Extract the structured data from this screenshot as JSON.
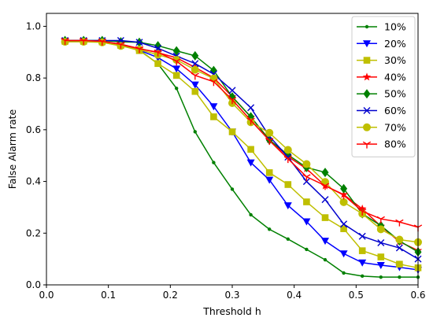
{
  "chart_data": {
    "type": "line",
    "title": "",
    "xlabel": "Threshold h",
    "ylabel": "False Alarm rate",
    "xlim": [
      0.0,
      0.6
    ],
    "ylim": [
      0.0,
      1.05
    ],
    "xticks": [
      0.0,
      0.1,
      0.2,
      0.3,
      0.4,
      0.5,
      0.6
    ],
    "xtick_labels": [
      "0.0",
      "0.1",
      "0.2",
      "0.3",
      "0.4",
      "0.5",
      "0.6"
    ],
    "yticks": [
      0.0,
      0.2,
      0.4,
      0.6,
      0.8,
      1.0
    ],
    "ytick_labels": [
      "0.0",
      "0.2",
      "0.4",
      "0.6",
      "0.8",
      "1.0"
    ],
    "grid": false,
    "legend_position": "top-right",
    "x": [
      0.03,
      0.06,
      0.09,
      0.12,
      0.15,
      0.18,
      0.21,
      0.24,
      0.27,
      0.3,
      0.33,
      0.36,
      0.39,
      0.42,
      0.45,
      0.48,
      0.51,
      0.54,
      0.57,
      0.6
    ],
    "series": [
      {
        "name": "10%",
        "color": "#008000",
        "marker": "dot",
        "values": [
          0.942,
          0.942,
          0.94,
          0.926,
          0.908,
          0.855,
          0.76,
          0.592,
          0.473,
          0.37,
          0.271,
          0.215,
          0.177,
          0.137,
          0.097,
          0.046,
          0.034,
          0.03,
          0.03,
          0.03
        ]
      },
      {
        "name": "20%",
        "color": "#0000ff",
        "marker": "triangle-down",
        "values": [
          0.942,
          0.942,
          0.94,
          0.928,
          0.908,
          0.879,
          0.836,
          0.774,
          0.69,
          0.592,
          0.473,
          0.406,
          0.307,
          0.245,
          0.17,
          0.121,
          0.086,
          0.076,
          0.068,
          0.058
        ]
      },
      {
        "name": "30%",
        "color": "#bfbf00",
        "marker": "square",
        "values": [
          0.942,
          0.942,
          0.94,
          0.926,
          0.906,
          0.856,
          0.81,
          0.748,
          0.65,
          0.592,
          0.524,
          0.434,
          0.388,
          0.321,
          0.26,
          0.217,
          0.132,
          0.108,
          0.08,
          0.066
        ]
      },
      {
        "name": "40%",
        "color": "#ff0000",
        "marker": "star",
        "values": [
          0.945,
          0.945,
          0.942,
          0.931,
          0.914,
          0.898,
          0.878,
          0.841,
          0.801,
          0.728,
          0.649,
          0.562,
          0.496,
          0.449,
          0.383,
          0.349,
          0.294,
          0.227,
          0.167,
          0.133
        ]
      },
      {
        "name": "50%",
        "color": "#008000",
        "marker": "diamond",
        "values": [
          0.945,
          0.945,
          0.945,
          0.94,
          0.938,
          0.925,
          0.905,
          0.886,
          0.829,
          0.727,
          0.65,
          0.56,
          0.503,
          0.454,
          0.435,
          0.372,
          0.275,
          0.229,
          0.17,
          0.127
        ]
      },
      {
        "name": "60%",
        "color": "#0000cd",
        "marker": "x",
        "values": [
          0.945,
          0.945,
          0.945,
          0.945,
          0.938,
          0.915,
          0.885,
          0.856,
          0.815,
          0.752,
          0.685,
          0.575,
          0.494,
          0.4,
          0.33,
          0.235,
          0.188,
          0.163,
          0.143,
          0.1
        ]
      },
      {
        "name": "70%",
        "color": "#bfbf00",
        "marker": "circle",
        "values": [
          0.94,
          0.94,
          0.938,
          0.924,
          0.91,
          0.89,
          0.87,
          0.832,
          0.798,
          0.703,
          0.629,
          0.588,
          0.522,
          0.467,
          0.398,
          0.32,
          0.275,
          0.215,
          0.175,
          0.165
        ]
      },
      {
        "name": "80%",
        "color": "#ff0000",
        "marker": "tri-down",
        "values": [
          0.945,
          0.945,
          0.942,
          0.93,
          0.913,
          0.9,
          0.865,
          0.81,
          0.786,
          0.716,
          0.636,
          0.558,
          0.488,
          0.418,
          0.384,
          0.347,
          0.285,
          0.255,
          0.243,
          0.223
        ]
      }
    ]
  }
}
